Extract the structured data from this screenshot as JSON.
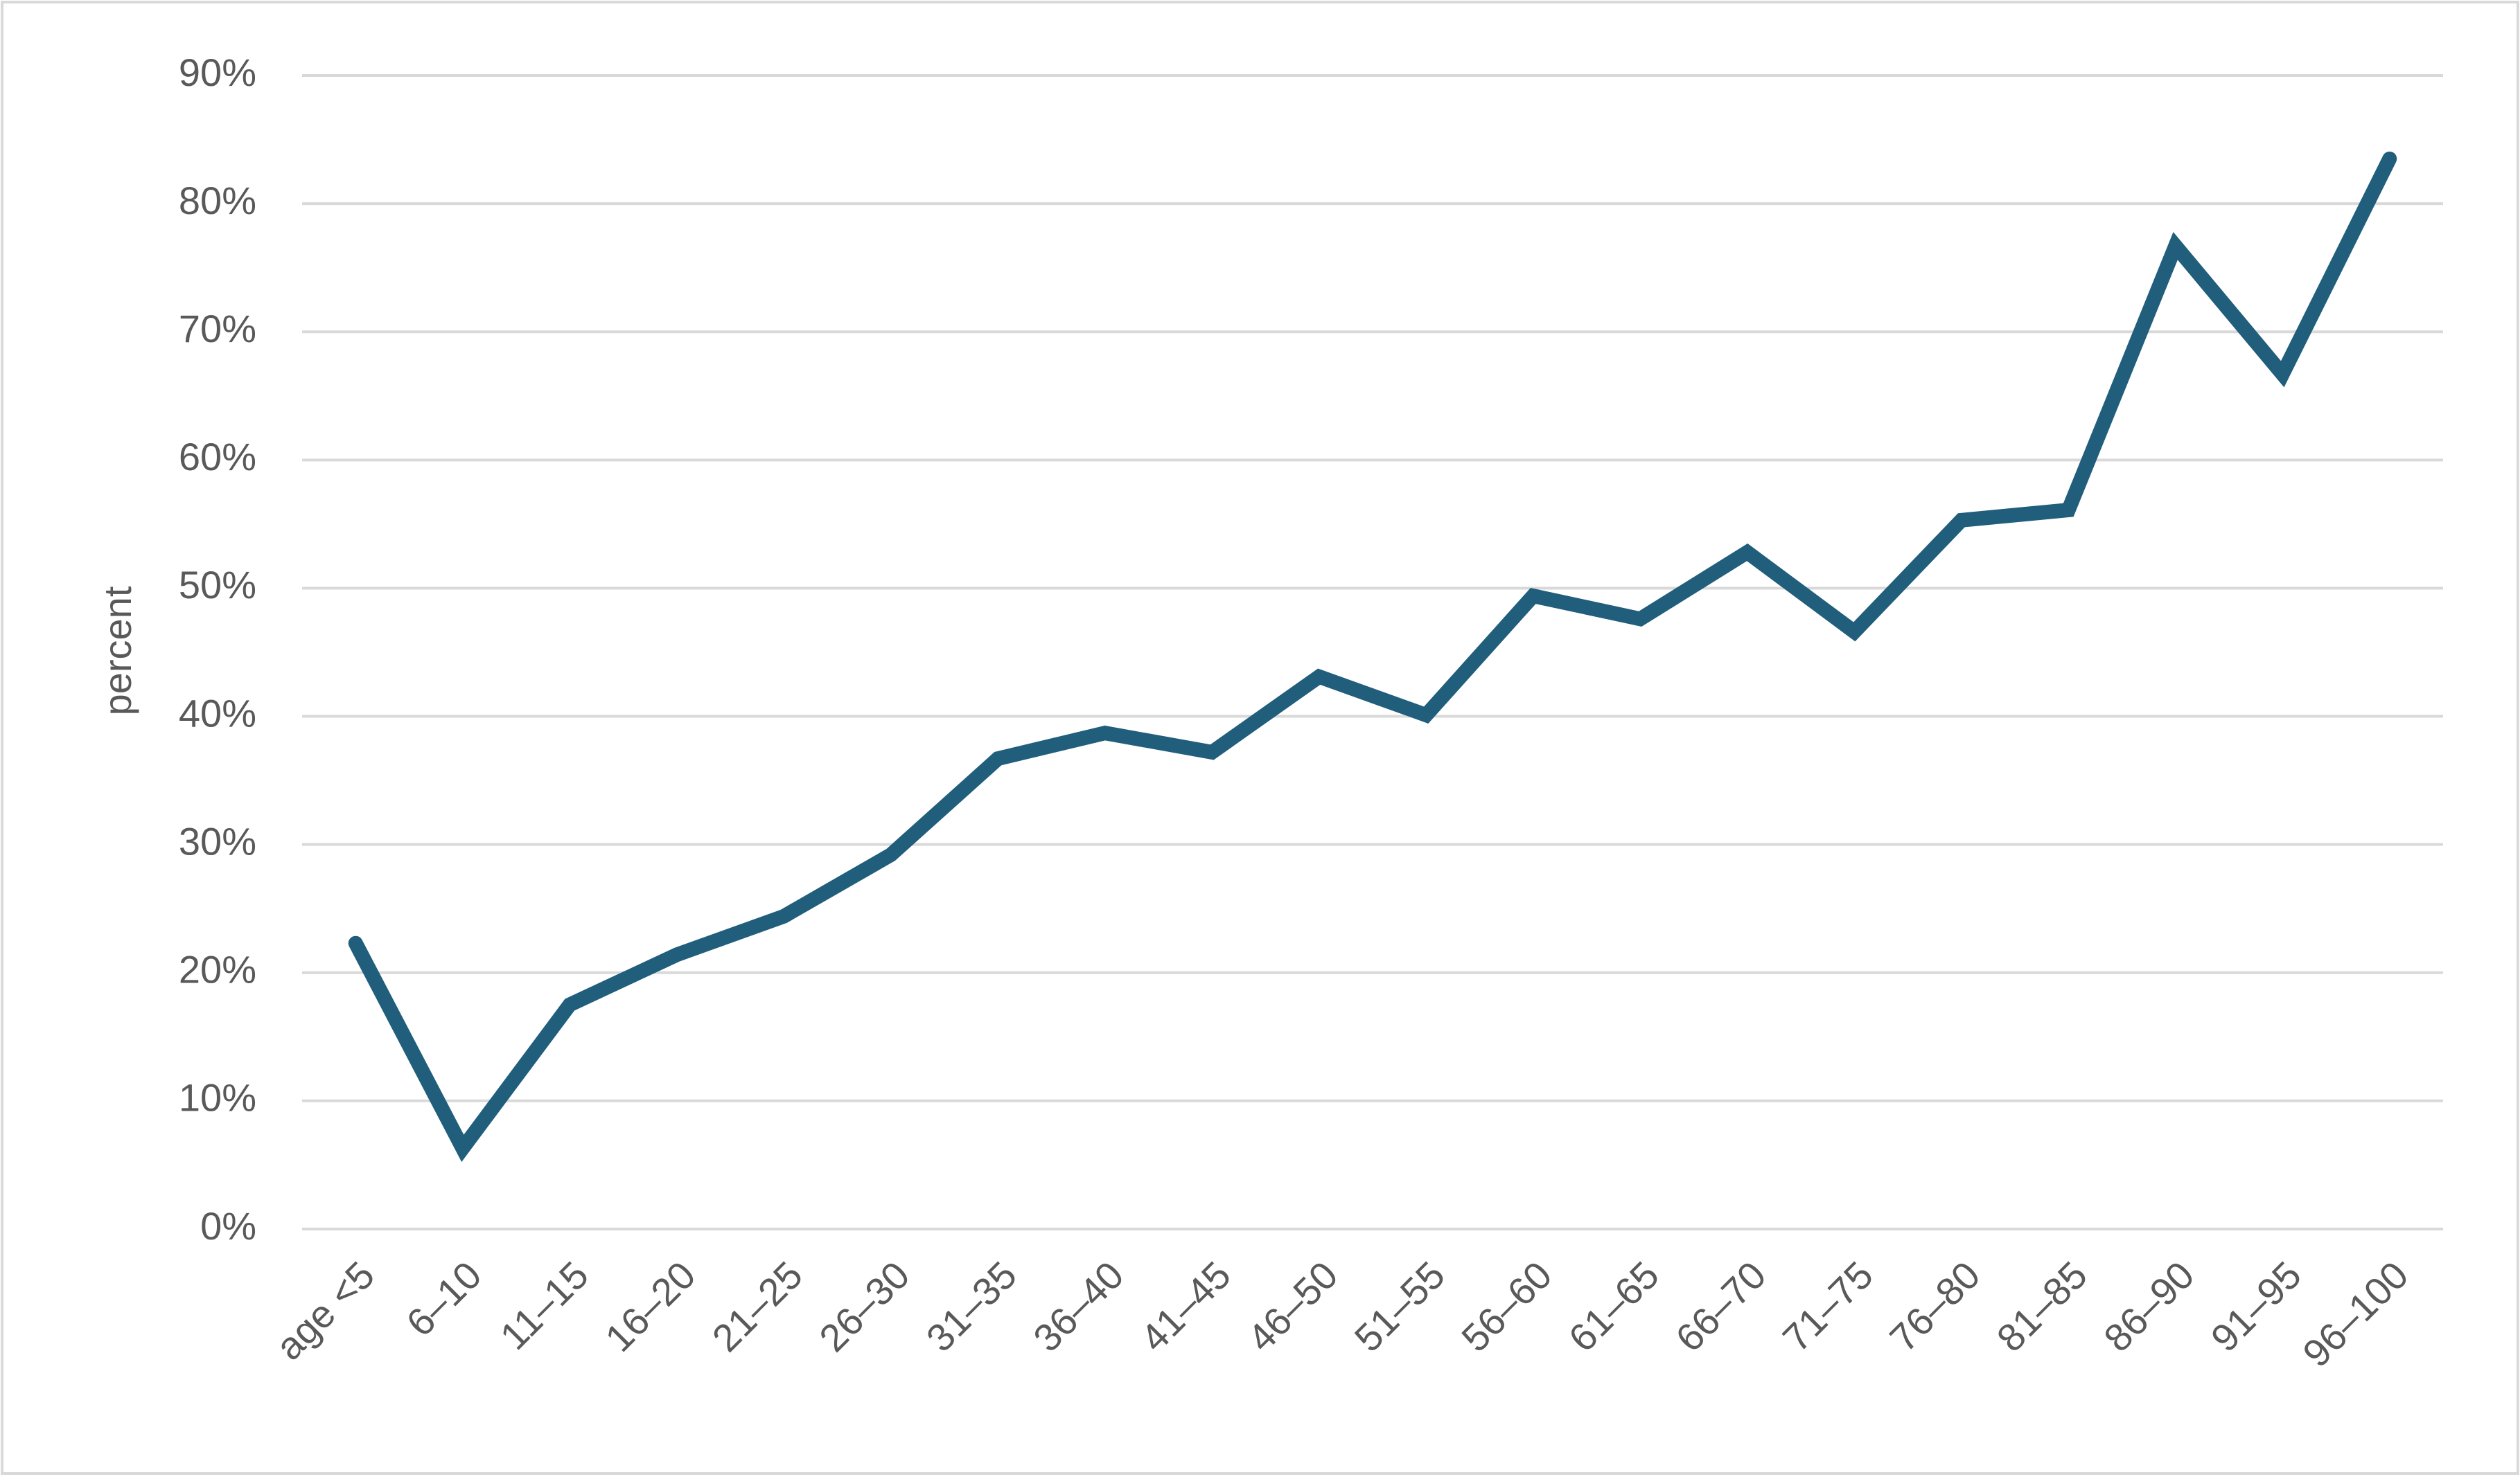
{
  "chart_data": {
    "type": "line",
    "y_label": "percent",
    "categories": [
      "age <5",
      "6–10",
      "11–15",
      "16–20",
      "21–25",
      "26–30",
      "31–35",
      "36–40",
      "41–45",
      "46–50",
      "51–55",
      "56–60",
      "61–65",
      "66–70",
      "71–75",
      "76–80",
      "81–85",
      "86–90",
      "91–95",
      "96–100"
    ],
    "values": [
      22.3,
      6.3,
      17.5,
      21.4,
      24.4,
      29.2,
      36.7,
      38.7,
      37.2,
      43.1,
      40.1,
      49.4,
      47.6,
      52.8,
      46.6,
      55.3,
      56.1,
      76.7,
      66.7,
      83.5
    ],
    "color": "#205e7c",
    "ylim": [
      0,
      90
    ],
    "yticks": [
      {
        "value": 0,
        "label": "0%"
      },
      {
        "value": 10,
        "label": "10%"
      },
      {
        "value": 20,
        "label": "20%"
      },
      {
        "value": 30,
        "label": "30%"
      },
      {
        "value": 40,
        "label": "40%"
      },
      {
        "value": 50,
        "label": "50%"
      },
      {
        "value": 60,
        "label": "60%"
      },
      {
        "value": 70,
        "label": "70%"
      },
      {
        "value": 80,
        "label": "80%"
      },
      {
        "value": 90,
        "label": "90%"
      }
    ],
    "grid": true
  }
}
